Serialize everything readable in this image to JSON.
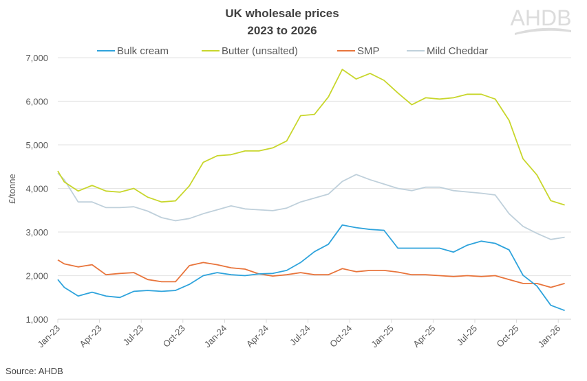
{
  "logo_text": "AHDB",
  "source": "Source: AHDB",
  "chart_data": {
    "type": "line",
    "title": [
      "UK wholesale prices",
      "2023 to 2026"
    ],
    "ylabel": "£/tonne",
    "xlabel": "",
    "ylim": [
      1000,
      7000
    ],
    "yticks": [
      "1,000",
      "2,000",
      "3,000",
      "4,000",
      "5,000",
      "6,000",
      "7,000"
    ],
    "xticks": [
      "Jan-23",
      "Apr-23",
      "Jul-23",
      "Oct-23",
      "Jan-24",
      "Apr-24",
      "Jul-24",
      "Oct-24",
      "Jan-25",
      "Apr-25",
      "Jul-25",
      "Oct-25",
      "Jan-26"
    ],
    "grid": "horizontal",
    "legend": "top",
    "x": [
      "2023-01-01",
      "2023-01-15",
      "2023-02-15",
      "2023-03-15",
      "2023-04-15",
      "2023-05-15",
      "2023-06-15",
      "2023-07-15",
      "2023-08-15",
      "2023-09-15",
      "2023-10-15",
      "2023-11-15",
      "2023-12-15",
      "2024-01-15",
      "2024-02-15",
      "2024-03-15",
      "2024-04-15",
      "2024-05-15",
      "2024-06-15",
      "2024-07-15",
      "2024-08-15",
      "2024-09-15",
      "2024-10-15",
      "2024-11-15",
      "2024-12-15",
      "2025-01-15",
      "2025-02-15",
      "2025-03-15",
      "2025-04-15",
      "2025-05-15",
      "2025-06-15",
      "2025-07-15",
      "2025-08-15",
      "2025-09-15",
      "2025-10-15",
      "2025-11-15",
      "2025-12-15",
      "2026-01-15"
    ],
    "series": [
      {
        "name": "Bulk cream",
        "color": "#2ea3dc",
        "values": [
          1910,
          1730,
          1530,
          1620,
          1530,
          1500,
          1640,
          1660,
          1640,
          1660,
          1800,
          2000,
          2070,
          2020,
          2000,
          2040,
          2050,
          2120,
          2300,
          2550,
          2720,
          3160,
          3100,
          3060,
          3040,
          2630,
          2630,
          2630,
          2630,
          2540,
          2700,
          2790,
          2740,
          2590,
          2010,
          1760,
          1320,
          1200
        ]
      },
      {
        "name": "Butter (unsalted)",
        "color": "#c8d62b",
        "values": [
          4400,
          4150,
          3940,
          4070,
          3940,
          3915,
          4000,
          3800,
          3690,
          3715,
          4060,
          4600,
          4750,
          4775,
          4860,
          4860,
          4930,
          5090,
          5670,
          5700,
          6100,
          6730,
          6510,
          6640,
          6480,
          6190,
          5920,
          6080,
          6050,
          6080,
          6160,
          6160,
          6050,
          5560,
          4680,
          4310,
          3720,
          3620
        ]
      },
      {
        "name": "SMP",
        "color": "#e8743b",
        "values": [
          2360,
          2270,
          2200,
          2250,
          2020,
          2050,
          2070,
          1910,
          1860,
          1860,
          2230,
          2300,
          2250,
          2180,
          2150,
          2040,
          1990,
          2020,
          2070,
          2020,
          2020,
          2160,
          2090,
          2120,
          2120,
          2080,
          2020,
          2020,
          2000,
          1980,
          2000,
          1980,
          2000,
          1910,
          1820,
          1820,
          1730,
          1820
        ]
      },
      {
        "name": "Mild Cheddar",
        "color": "#bfd0db",
        "values": [
          4350,
          4200,
          3690,
          3690,
          3560,
          3560,
          3580,
          3480,
          3330,
          3260,
          3310,
          3420,
          3510,
          3600,
          3530,
          3510,
          3490,
          3550,
          3690,
          3780,
          3870,
          4160,
          4320,
          4200,
          4100,
          4000,
          3950,
          4030,
          4030,
          3950,
          3920,
          3890,
          3850,
          3420,
          3130,
          2970,
          2830,
          2880
        ]
      }
    ]
  }
}
